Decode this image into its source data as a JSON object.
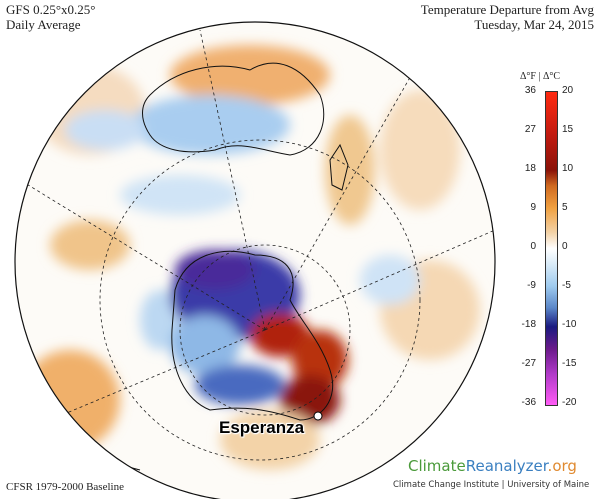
{
  "header": {
    "model": "GFS 0.25°x0.25°",
    "period": "Daily Average",
    "title": "Temperature Departure from Avg",
    "date": "Tuesday, Mar 24, 2015"
  },
  "footer": {
    "baseline": "CFSR 1979-2000 Baseline"
  },
  "logo": {
    "part1": "Climate",
    "part2": "Reanalyzer",
    "part3": ".org",
    "subtitle": "Climate Change Institute | University of Maine"
  },
  "map": {
    "projection": "orthographic, south polar view",
    "marker_label": "Esperanza",
    "marker_color": "#ffffff"
  },
  "colorbar": {
    "title": "Δ°F | Δ°C",
    "f_ticks": [
      "36",
      "27",
      "18",
      "9",
      "0",
      "-9",
      "-18",
      "-27",
      "-36"
    ],
    "c_ticks": [
      "20",
      "15",
      "10",
      "5",
      "0",
      "-5",
      "-10",
      "-15",
      "-20"
    ],
    "colors": {
      "warm_max": "#ff2a10",
      "warm": "#8a1208",
      "mild_warm": "#f0a040",
      "neutral": "#ffffff",
      "cool": "#9fcbef",
      "cold": "#1a1a80",
      "cold_min": "#ff5cf5"
    }
  }
}
